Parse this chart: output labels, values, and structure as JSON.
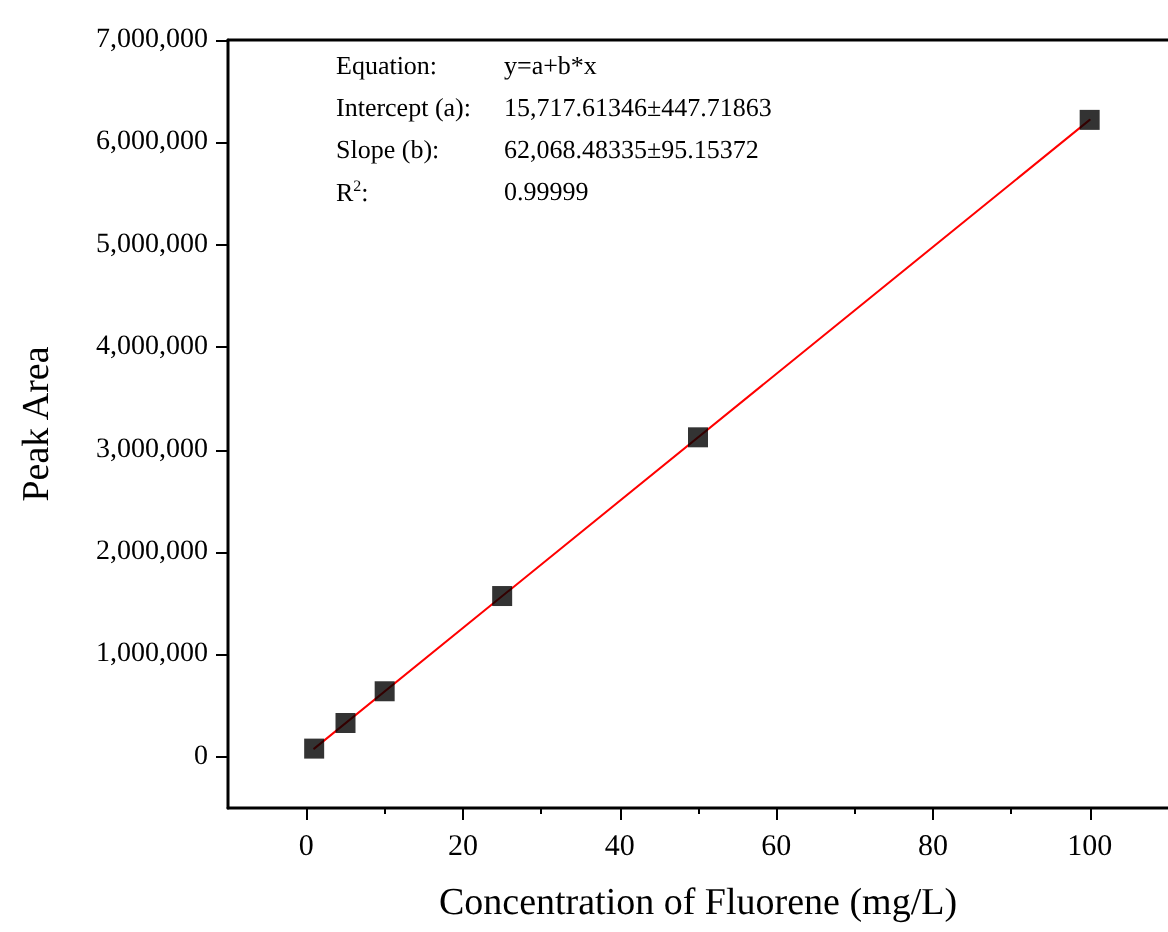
{
  "chart_data": {
    "type": "scatter",
    "xlabel": "Concentration of Fluorene (mg/L)",
    "ylabel": "Peak Area",
    "x": [
      1,
      5,
      10,
      25,
      50,
      100
    ],
    "series": [
      {
        "color": "#000000",
        "marker": "square",
        "values": [
          80000,
          330000,
          640000,
          1570000,
          3120000,
          6220000
        ]
      },
      {
        "type": "line",
        "color": "#ff0000",
        "x": [
          1,
          100
        ],
        "values": [
          80000,
          6220000
        ],
        "marker": "none"
      }
    ],
    "xlim": [
      -10,
      110
    ],
    "xticks": [
      0,
      20,
      40,
      60,
      80,
      100
    ],
    "ylim": [
      -500000,
      7000000
    ],
    "yticks": [
      {
        "value": 0,
        "label": "0"
      },
      {
        "value": 1000000,
        "label": "1,000,000"
      },
      {
        "value": 2000000,
        "label": "2,000,000"
      },
      {
        "value": 3000000,
        "label": "3,000,000"
      },
      {
        "value": 4000000,
        "label": "4,000,000"
      },
      {
        "value": 5000000,
        "label": "5,000,000"
      },
      {
        "value": 6000000,
        "label": "6,000,000"
      },
      {
        "value": 7000000,
        "label": "7,000,000"
      }
    ],
    "grid": false,
    "annotations": [
      "Equation: y=a+b*x",
      "Intercept (a): 15,717.61346±447.71863",
      "Slope (b): 62,068.48335±95.15372",
      "R$^{2}$: 0.99999"
    ]
  }
}
